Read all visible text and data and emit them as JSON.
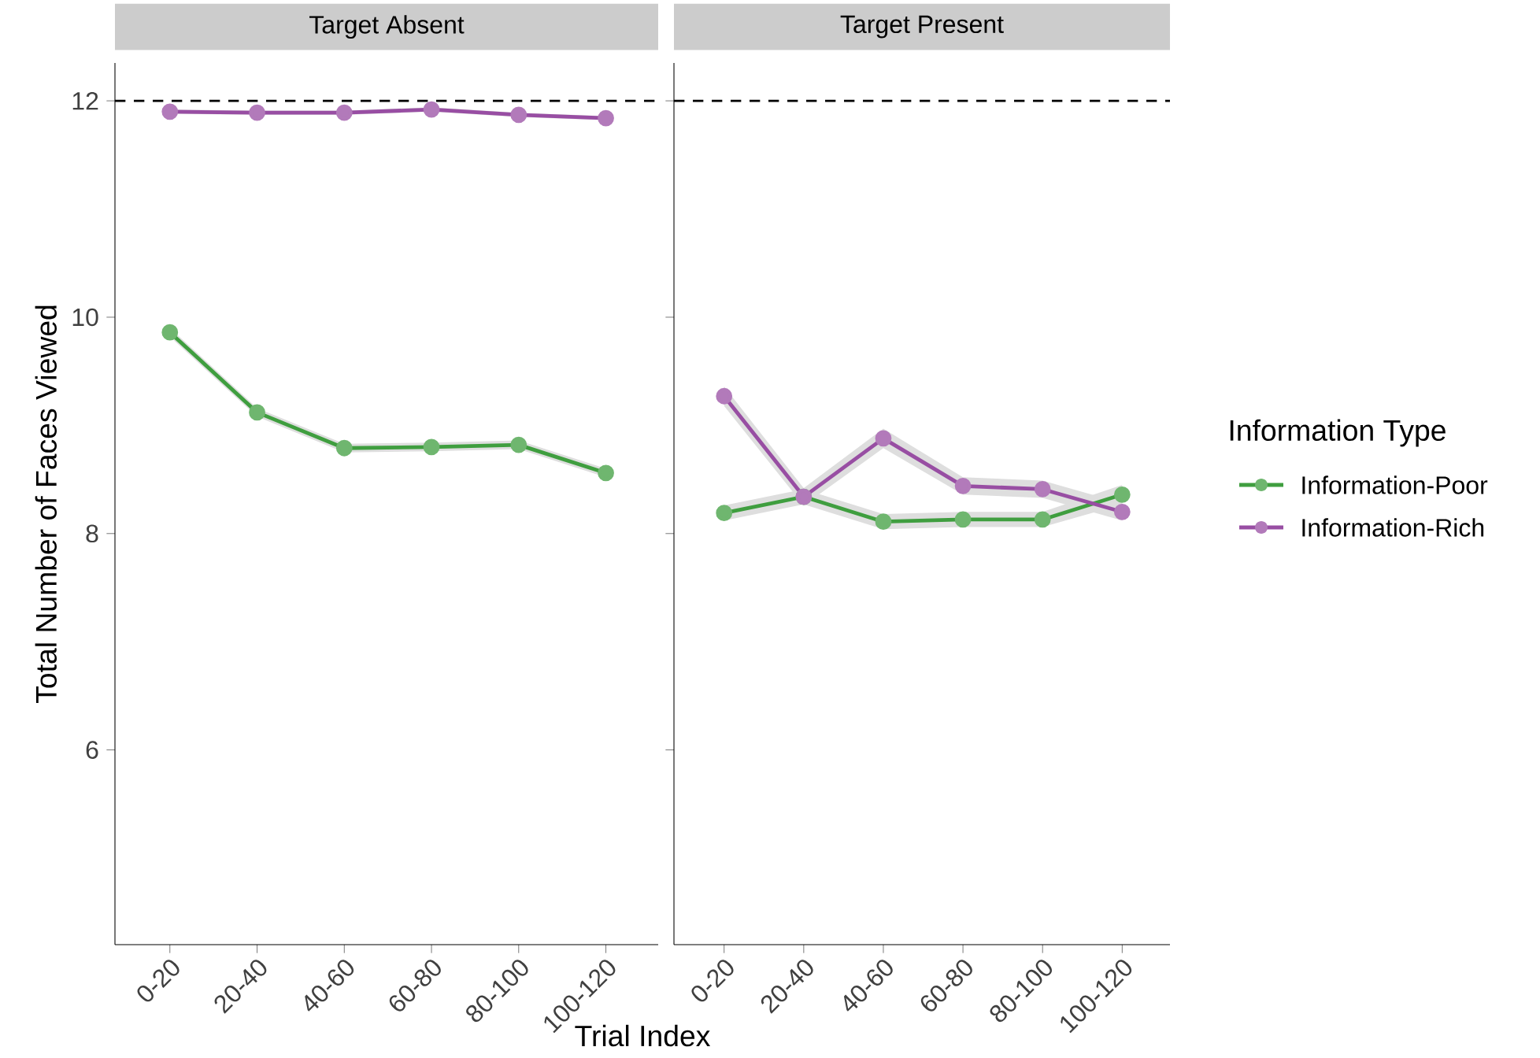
{
  "chart_data": [
    {
      "type": "line",
      "title": "Target Absent",
      "ylabel": "Total Number of Faces Viewed",
      "xlabel": "Trial Index",
      "legend_title": "Information Type",
      "legend": "right",
      "categories": [
        "0-20",
        "20-40",
        "40-60",
        "60-80",
        "80-100",
        "100-120"
      ],
      "series": [
        {
          "name": "Information-Poor",
          "color": "#3f9e3f",
          "values": [
            9.86,
            9.12,
            8.79,
            8.8,
            8.82,
            8.56
          ],
          "lower": [
            9.82,
            9.08,
            8.75,
            8.76,
            8.78,
            8.52
          ],
          "upper": [
            9.9,
            9.16,
            8.83,
            8.84,
            8.86,
            8.6
          ]
        },
        {
          "name": "Information-Rich",
          "color": "#984ea3",
          "values": [
            11.9,
            11.89,
            11.89,
            11.92,
            11.87,
            11.84
          ],
          "lower": [
            11.88,
            11.87,
            11.87,
            11.9,
            11.85,
            11.82
          ],
          "upper": [
            11.92,
            11.91,
            11.91,
            11.94,
            11.89,
            11.86
          ]
        }
      ],
      "ylim": [
        4.2,
        12.35
      ],
      "yticks": [
        6,
        8,
        10,
        12
      ],
      "marker": "circle",
      "line_style": "solid",
      "grid": false,
      "ref_lines": [
        {
          "axis": "y",
          "value": 12,
          "color": "#000000",
          "line_style": "dashed"
        }
      ]
    },
    {
      "type": "line",
      "title": "Target Present",
      "tick_labels": "x",
      "categories": [
        "0-20",
        "20-40",
        "40-60",
        "60-80",
        "80-100",
        "100-120"
      ],
      "series": [
        {
          "color": "#3f9e3f",
          "values": [
            8.19,
            8.34,
            8.11,
            8.13,
            8.13,
            8.36
          ],
          "lower": [
            8.12,
            8.27,
            8.04,
            8.06,
            8.06,
            8.27
          ],
          "upper": [
            8.26,
            8.41,
            8.18,
            8.2,
            8.2,
            8.45
          ]
        },
        {
          "color": "#984ea3",
          "values": [
            9.27,
            8.34,
            8.88,
            8.44,
            8.41,
            8.2
          ],
          "lower": [
            9.18,
            8.26,
            8.79,
            8.36,
            8.33,
            8.12
          ],
          "upper": [
            9.36,
            8.42,
            8.97,
            8.52,
            8.49,
            8.28
          ]
        }
      ],
      "ylim": [
        4.2,
        12.35
      ],
      "yticks": [
        6,
        8,
        10,
        12
      ],
      "marker": "circle",
      "line_style": "solid",
      "grid": false,
      "ref_lines": [
        {
          "axis": "y",
          "value": 12,
          "color": "#000000",
          "line_style": "dashed"
        }
      ]
    }
  ]
}
